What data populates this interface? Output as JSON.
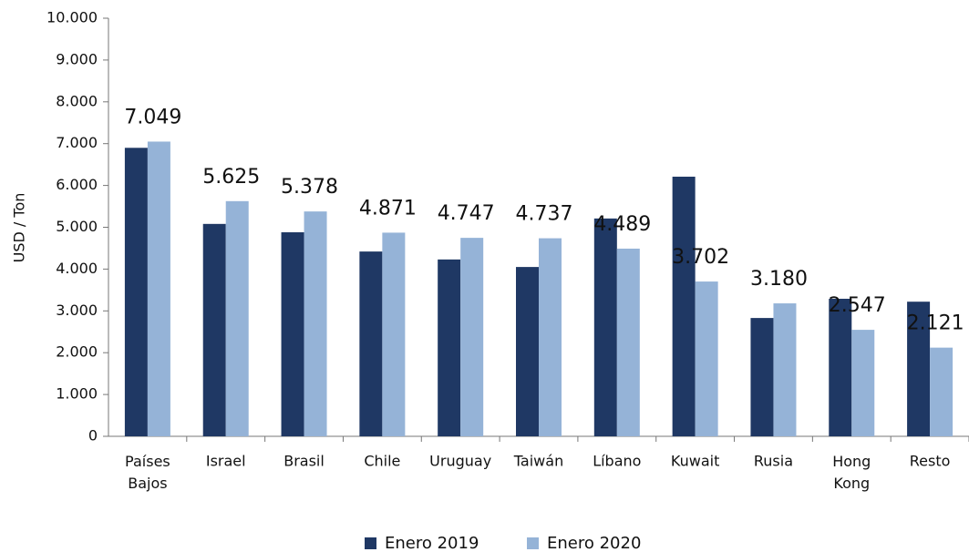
{
  "chart_data": {
    "type": "bar",
    "y_label": "USD / Ton",
    "categories": [
      "Países Bajos",
      "Israel",
      "Brasil",
      "Chile",
      "Uruguay",
      "Taiwán",
      "Líbano",
      "Kuwait",
      "Rusia",
      "Hong Kong",
      "Resto"
    ],
    "series": [
      {
        "name": "Enero 2019",
        "color": "#1f3864",
        "values": [
          6900,
          5080,
          4880,
          4420,
          4230,
          4050,
          5210,
          6210,
          2830,
          3290,
          3220
        ]
      },
      {
        "name": "Enero 2020",
        "color": "#95b3d7",
        "values": [
          7049,
          5625,
          5378,
          4871,
          4747,
          4737,
          4489,
          3702,
          3180,
          2547,
          2121
        ],
        "value_labels": [
          "7.049",
          "5.625",
          "5.378",
          "4.871",
          "4.747",
          "4.737",
          "4.489",
          "3.702",
          "3.180",
          "2.547",
          "2.121"
        ]
      }
    ],
    "ylim": [
      0,
      10000
    ],
    "yticks": [
      0,
      {
        "value": 1000,
        "label": "1.000"
      },
      {
        "value": 2000,
        "label": "2.000"
      },
      {
        "value": 3000,
        "label": "3.000"
      },
      {
        "value": 4000,
        "label": "4.000"
      },
      {
        "value": 5000,
        "label": "5.000"
      },
      {
        "value": 6000,
        "label": "6.000"
      },
      {
        "value": 7000,
        "label": "7.000"
      },
      {
        "value": 8000,
        "label": "8.000"
      },
      {
        "value": 9000,
        "label": "9.000"
      },
      {
        "value": 10000,
        "label": "10.000"
      }
    ],
    "legend": "bottom"
  }
}
